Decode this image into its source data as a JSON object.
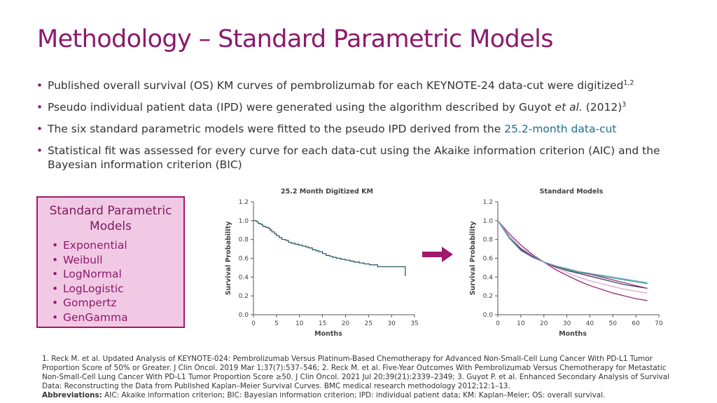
{
  "title": "Methodology – Standard Parametric Models",
  "bullets": [
    {
      "pre": "Published overall survival (OS) KM curves of pembrolizumab for each KEYNOTE-24 data-cut were digitized",
      "sup": "1,2"
    },
    {
      "pre": "Pseudo individual patient data (IPD) were generated using the algorithm described by Guyot ",
      "italic": "et al.",
      "post": " (2012)",
      "sup": "3"
    },
    {
      "pre": "The six standard parametric models were fitted to the pseudo IPD derived from the ",
      "highlight": "25.2-month data-cut"
    },
    {
      "pre": "Statistical fit was assessed for every curve for each data-cut using the Akaike information criterion (AIC) and the Bayesian information criterion (BIC)"
    }
  ],
  "models_box": {
    "title": "Standard Parametric Models",
    "items": [
      "Exponential",
      "Weibull",
      "LogNormal",
      "LogLogistic",
      "Gompertz",
      "GenGamma"
    ]
  },
  "colors": {
    "title": "#8b1a6b",
    "box_fill": "#f2c9e4",
    "box_border": "#a0196b",
    "arrow": "#a0196b",
    "km_line": "#1f4e5a"
  },
  "chart_data": [
    {
      "type": "line",
      "title": "25.2 Month Digitized KM",
      "xlabel": "Months",
      "ylabel": "Survival Probability",
      "xlim": [
        0,
        35
      ],
      "ylim": [
        0,
        1.2
      ],
      "xticks": [
        0,
        5,
        10,
        15,
        20,
        25,
        30,
        35
      ],
      "yticks": [
        "0.0",
        "0.2",
        "0.4",
        "0.6",
        "0.8",
        "1.0",
        "1.2"
      ],
      "step": true,
      "series": [
        {
          "color": "#1f4e5a",
          "x": [
            0,
            0.6,
            1.0,
            1.6,
            2.0,
            2.6,
            3.2,
            3.6,
            4.0,
            4.6,
            5.0,
            5.6,
            6.2,
            7.0,
            7.6,
            8.2,
            9.0,
            9.8,
            10.6,
            11.4,
            12.0,
            12.8,
            13.6,
            14.2,
            15.0,
            15.8,
            16.6,
            17.2,
            18.0,
            19.0,
            20.0,
            21.0,
            21.8,
            23.0,
            24.0,
            25.2,
            27.0,
            30.0,
            33.0
          ],
          "y": [
            1.0,
            0.99,
            0.97,
            0.96,
            0.94,
            0.93,
            0.92,
            0.9,
            0.88,
            0.86,
            0.84,
            0.82,
            0.8,
            0.79,
            0.77,
            0.76,
            0.75,
            0.74,
            0.73,
            0.72,
            0.71,
            0.69,
            0.68,
            0.67,
            0.65,
            0.63,
            0.62,
            0.61,
            0.6,
            0.59,
            0.58,
            0.57,
            0.56,
            0.55,
            0.54,
            0.53,
            0.51,
            0.51,
            0.41
          ]
        }
      ]
    },
    {
      "type": "line",
      "title": "Standard Models",
      "xlabel": "Months",
      "ylabel": "Survival Probability",
      "xlim": [
        0,
        70
      ],
      "ylim": [
        0,
        1.2
      ],
      "xticks": [
        0,
        10,
        20,
        30,
        40,
        50,
        60,
        70
      ],
      "yticks": [
        "0.0",
        "0.2",
        "0.4",
        "0.6",
        "0.8",
        "1.0",
        "1.2"
      ],
      "step": false,
      "series": [
        {
          "color": "#8b1a6b",
          "x": [
            0,
            5,
            10,
            15,
            20,
            25,
            30,
            35,
            40,
            45,
            50,
            55,
            60,
            65
          ],
          "y": [
            1.0,
            0.86,
            0.74,
            0.64,
            0.56,
            0.48,
            0.42,
            0.36,
            0.31,
            0.27,
            0.23,
            0.2,
            0.17,
            0.15
          ]
        },
        {
          "color": "#d8a0c8",
          "x": [
            0,
            5,
            10,
            15,
            20,
            25,
            30,
            35,
            40,
            45,
            50,
            55,
            60,
            65
          ],
          "y": [
            1.0,
            0.84,
            0.71,
            0.63,
            0.56,
            0.5,
            0.45,
            0.4,
            0.36,
            0.33,
            0.3,
            0.27,
            0.25,
            0.23
          ]
        },
        {
          "color": "#2f2f4f",
          "x": [
            0,
            5,
            10,
            15,
            20,
            25,
            30,
            35,
            40,
            45,
            50,
            55,
            60,
            65
          ],
          "y": [
            1.0,
            0.82,
            0.7,
            0.62,
            0.56,
            0.51,
            0.47,
            0.44,
            0.41,
            0.38,
            0.35,
            0.32,
            0.3,
            0.28
          ]
        },
        {
          "color": "#3a9a7a",
          "x": [
            0,
            5,
            10,
            15,
            20,
            25,
            30,
            35,
            40,
            45,
            50,
            55,
            60,
            65
          ],
          "y": [
            1.0,
            0.82,
            0.69,
            0.61,
            0.56,
            0.52,
            0.48,
            0.45,
            0.43,
            0.41,
            0.39,
            0.37,
            0.35,
            0.33
          ]
        },
        {
          "color": "#9a2a7a",
          "x": [
            0,
            5,
            10,
            15,
            20,
            25,
            30,
            35,
            40,
            45,
            50,
            55,
            60,
            65
          ],
          "y": [
            1.0,
            0.81,
            0.69,
            0.61,
            0.56,
            0.52,
            0.49,
            0.46,
            0.43,
            0.4,
            0.37,
            0.34,
            0.31,
            0.28
          ]
        },
        {
          "color": "#6aa8c8",
          "x": [
            0,
            5,
            10,
            15,
            20,
            25,
            30,
            35,
            40,
            45,
            50,
            55,
            60,
            65
          ],
          "y": [
            1.0,
            0.81,
            0.68,
            0.61,
            0.56,
            0.52,
            0.49,
            0.46,
            0.44,
            0.42,
            0.4,
            0.38,
            0.36,
            0.34
          ]
        }
      ]
    }
  ],
  "footnotes": {
    "refs": "1. Reck M. et al. Updated Analysis of KEYNOTE-024: Pembrolizumab Versus Platinum-Based Chemotherapy for Advanced Non-Small-Cell Lung Cancer With PD-L1 Tumor Proportion Score of 50% or Greater. J Clin Oncol. 2019 Mar 1;37(7):537–546; 2. Reck M. et al. Five-Year Outcomes With Pembrolizumab Versus Chemotherapy for Metastatic Non-Small-Cell Lung Cancer With PD-L1 Tumor Proportion Score ≥50. J Clin Oncol. 2021 Jul 20;39(21):2339–2349; 3. Guyot P. et al. Enhanced Secondary Analysis of Survival Data: Reconstructing the Data from Published Kaplan–Meier Survival Curves. BMC medical research methodology 2012;12:1–13.",
    "abbrev_label": "Abbreviations:",
    "abbrev_text": " AIC: Akaike information criterion; BIC: Bayesian information criterion; IPD: individual patient data; KM: Kaplan–Meier; OS: overall survival."
  }
}
